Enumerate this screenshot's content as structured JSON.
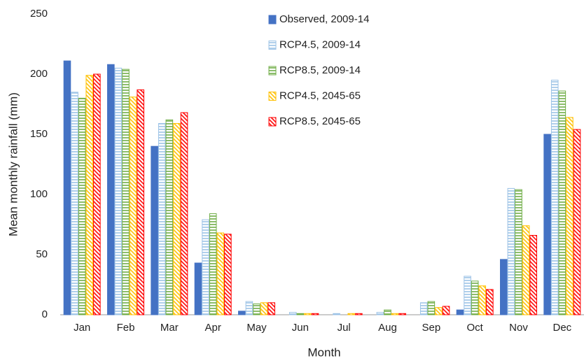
{
  "chart_data": {
    "type": "bar",
    "x_label": "Month",
    "y_label": "Mean monthly rainfall (mm)",
    "categories": [
      "Jan",
      "Feb",
      "Mar",
      "Apr",
      "May",
      "Jun",
      "Jul",
      "Aug",
      "Sep",
      "Oct",
      "Nov",
      "Dec"
    ],
    "series": [
      {
        "name": "Observed, 2009-14",
        "color": "#4472c4",
        "pattern": "solid",
        "values": [
          211,
          208,
          140,
          43,
          3,
          0,
          0,
          0,
          0,
          4,
          46,
          150
        ]
      },
      {
        "name": "RCP4.5, 2009-14",
        "color": "#9dc3e6",
        "pattern": "horizontal",
        "values": [
          185,
          205,
          159,
          79,
          11,
          2,
          1,
          2,
          10,
          32,
          105,
          195
        ]
      },
      {
        "name": "RCP8.5, 2009-14",
        "color": "#70ad47",
        "pattern": "horizontal",
        "values": [
          180,
          204,
          162,
          84,
          9,
          1,
          0,
          4,
          11,
          28,
          104,
          186
        ]
      },
      {
        "name": "RCP4.5, 2045-65",
        "color": "#ffc000",
        "pattern": "diagonal",
        "values": [
          199,
          181,
          159,
          68,
          10,
          1,
          1,
          1,
          6,
          24,
          74,
          164
        ]
      },
      {
        "name": "RCP8.5, 2045-65",
        "color": "#ff0000",
        "pattern": "diagonal",
        "values": [
          200,
          187,
          168,
          67,
          10,
          1,
          1,
          1,
          7,
          21,
          66,
          154
        ]
      }
    ],
    "ylim": [
      0,
      250
    ],
    "yticks": [
      0,
      50,
      100,
      150,
      200,
      250
    ],
    "grid": false,
    "legend": "top"
  }
}
